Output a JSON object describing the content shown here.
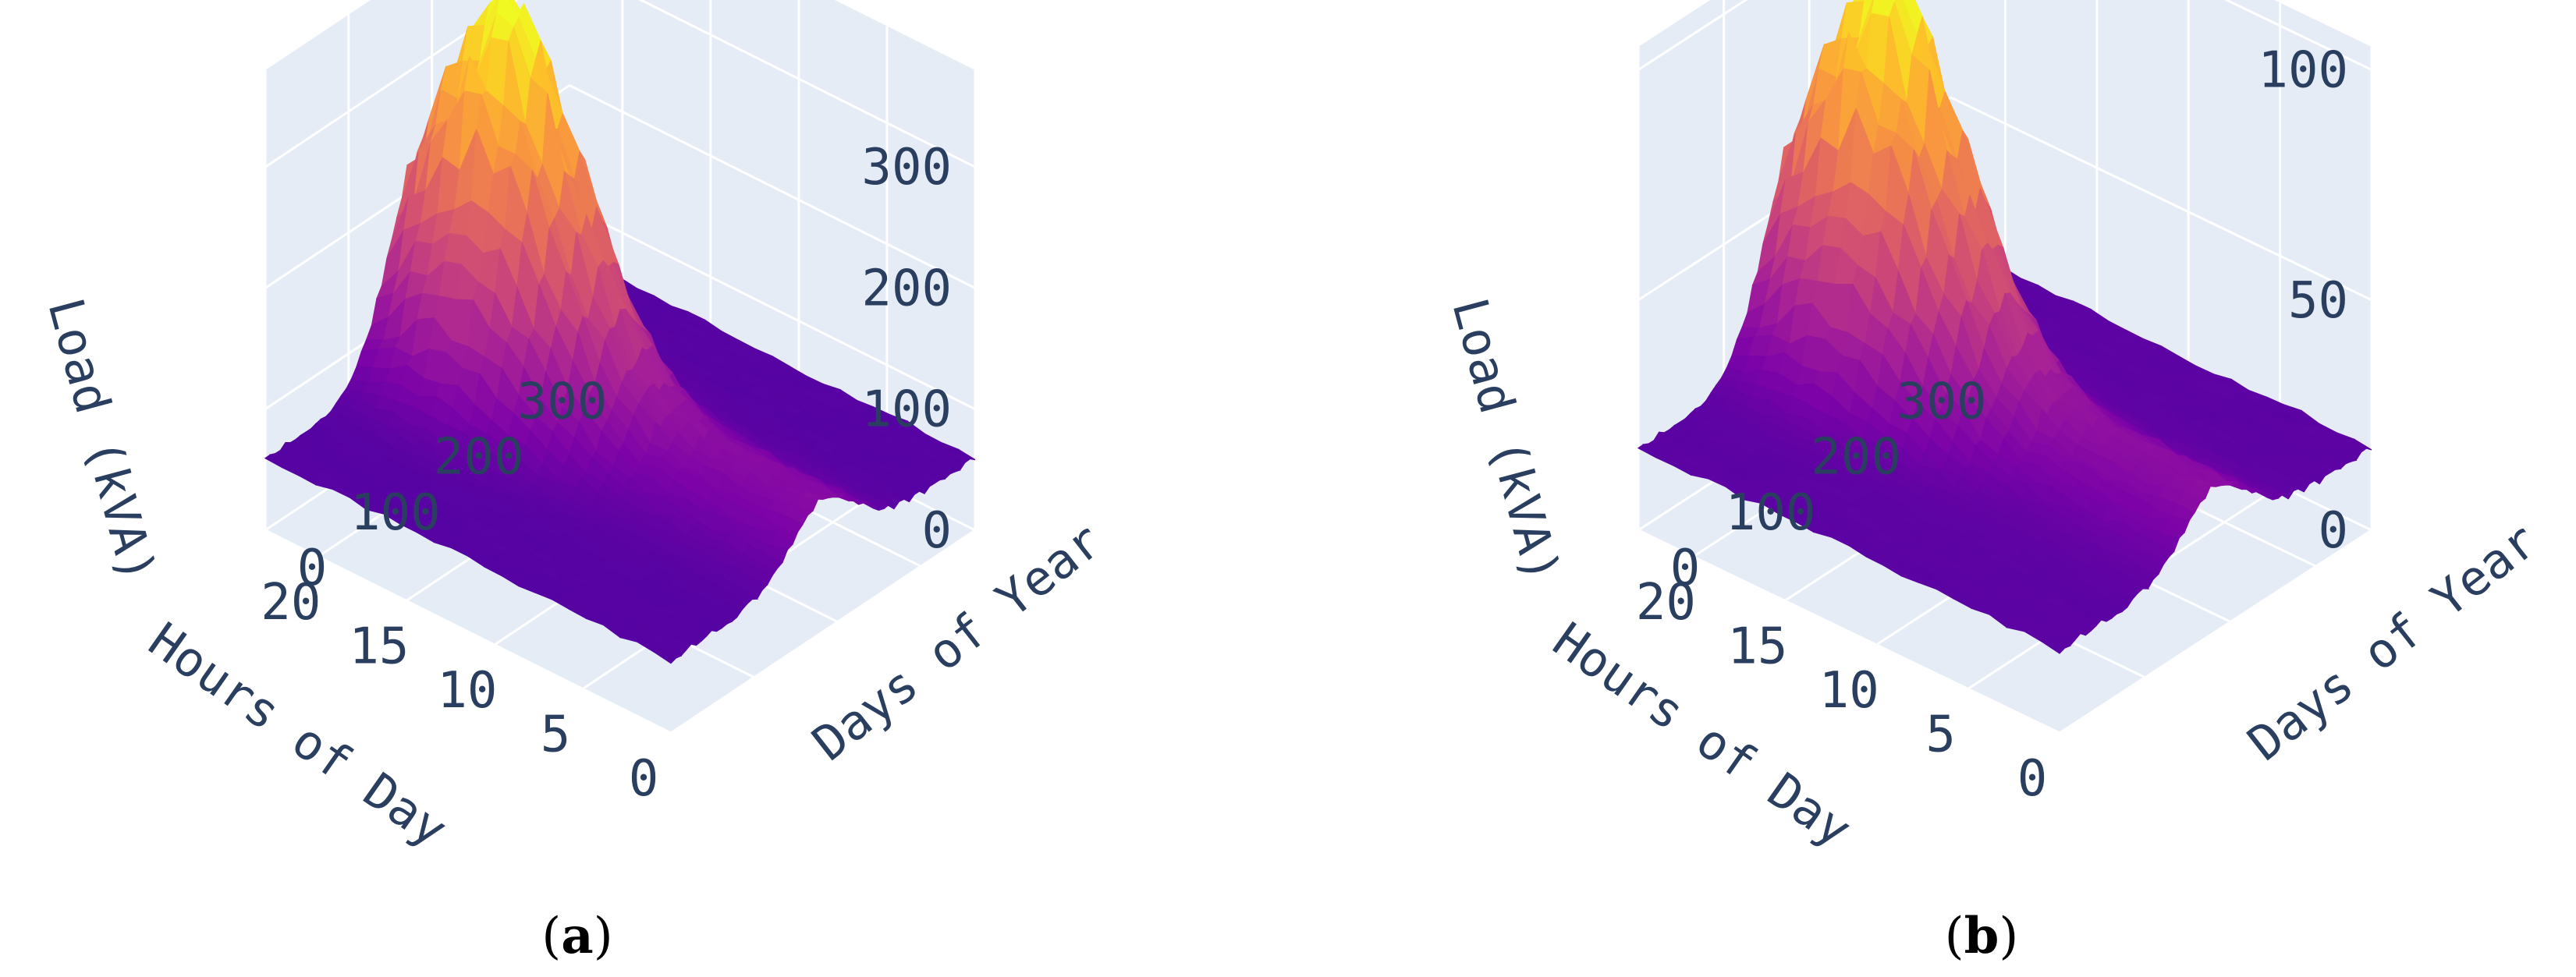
{
  "chart_data": [
    {
      "type": "surface",
      "panel_label": "a",
      "xlabel": "Hours of Day",
      "ylabel": "Days of Year",
      "zlabel": "Load (kVA)",
      "x_ticks": [
        0,
        5,
        10,
        15,
        20
      ],
      "y_ticks": [
        0,
        100,
        200,
        300
      ],
      "z_ticks": [
        0,
        100,
        200,
        300
      ],
      "xlim": [
        0,
        23
      ],
      "ylim": [
        0,
        365
      ],
      "zlim": [
        0,
        380
      ],
      "colorscale": "plasma",
      "baseline_load": 60,
      "peak": {
        "hour": 18,
        "day": 185,
        "load": 375
      },
      "colors": {
        "pane": "#e5ecf6",
        "grid": "#ffffff",
        "text": "#2a3f5f"
      }
    },
    {
      "type": "surface",
      "panel_label": "b",
      "xlabel": "Hours of Day",
      "ylabel": "Days of Year",
      "zlabel": "Load (kVA)",
      "x_ticks": [
        0,
        5,
        10,
        15,
        20
      ],
      "y_ticks": [
        0,
        100,
        200,
        300
      ],
      "z_ticks": [
        0,
        50,
        100
      ],
      "xlim": [
        0,
        23
      ],
      "ylim": [
        0,
        365
      ],
      "zlim": [
        0,
        105
      ],
      "colorscale": "plasma",
      "baseline_load": 18,
      "peak": {
        "hour": 18,
        "day": 185,
        "load": 104
      },
      "colors": {
        "pane": "#e5ecf6",
        "grid": "#ffffff",
        "text": "#2a3f5f"
      }
    }
  ]
}
